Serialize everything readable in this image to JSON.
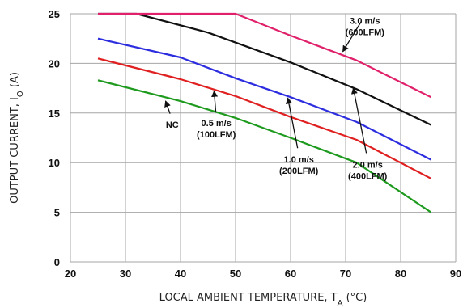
{
  "chart_data": {
    "type": "line",
    "xlabel": {
      "main": "LOCAL AMBIENT TEMPERATURE, T",
      "sub": "A",
      "unit": " (°C)"
    },
    "ylabel": {
      "main": "OUTPUT CURRENT, I",
      "sub": "O",
      "unit": " (A)"
    },
    "xlim": [
      20,
      90
    ],
    "ylim": [
      0,
      25
    ],
    "x_ticks": [
      "20",
      "30",
      "40",
      "50",
      "60",
      "70",
      "80",
      "90"
    ],
    "y_ticks": [
      "0",
      "5",
      "10",
      "15",
      "20",
      "25"
    ],
    "grid": true,
    "series": [
      {
        "name": "NC",
        "color": "#1e9a1e",
        "points": [
          [
            25,
            18.3
          ],
          [
            40,
            16.2
          ],
          [
            50,
            14.5
          ],
          [
            60,
            12.5
          ],
          [
            72,
            10.0
          ],
          [
            85.5,
            5.0
          ]
        ]
      },
      {
        "name": "0.5 m/s (100LFM)",
        "color": "#e02020",
        "points": [
          [
            25,
            20.5
          ],
          [
            40,
            18.4
          ],
          [
            50,
            16.7
          ],
          [
            60,
            14.6
          ],
          [
            72,
            12.3
          ],
          [
            85.5,
            8.4
          ]
        ]
      },
      {
        "name": "1.0 m/s (200LFM)",
        "color": "#2d2de0",
        "points": [
          [
            25,
            22.5
          ],
          [
            40,
            20.6
          ],
          [
            50,
            18.5
          ],
          [
            60,
            16.6
          ],
          [
            72,
            14.1
          ],
          [
            85.5,
            10.3
          ]
        ]
      },
      {
        "name": "2.0 m/s (400LFM)",
        "color": "#111111",
        "points": [
          [
            25,
            25.0
          ],
          [
            32,
            25.0
          ],
          [
            45,
            23.1
          ],
          [
            60,
            20.1
          ],
          [
            72,
            17.4
          ],
          [
            85.5,
            13.8
          ]
        ]
      },
      {
        "name": "3.0 m/s (600LFM)",
        "color": "#e0206a",
        "points": [
          [
            25,
            25.0
          ],
          [
            50,
            25.0
          ],
          [
            60,
            22.8
          ],
          [
            72,
            20.3
          ],
          [
            85.5,
            16.6
          ]
        ]
      }
    ],
    "annotations": [
      {
        "lines": [
          "NC"
        ],
        "x": 38.5,
        "y": 13.5,
        "arrow_to": [
          37.3,
          16.2
        ]
      },
      {
        "lines": [
          "0.5 m/s",
          "(100LFM)"
        ],
        "x": 46.5,
        "y": 13.7,
        "arrow_to": [
          46.1,
          17.2
        ]
      },
      {
        "lines": [
          "1.0 m/s",
          "(200LFM)"
        ],
        "x": 61.5,
        "y": 10.0,
        "arrow_to": [
          59.5,
          16.5
        ]
      },
      {
        "lines": [
          "2.0 m/s",
          "(400LFM)"
        ],
        "x": 74.0,
        "y": 9.5,
        "arrow_to": [
          71.4,
          17.5
        ]
      },
      {
        "lines": [
          "3.0 m/s",
          "(600LFM)"
        ],
        "x": 73.5,
        "y": 24.0,
        "arrow_to": [
          69.5,
          21.2
        ]
      }
    ]
  }
}
